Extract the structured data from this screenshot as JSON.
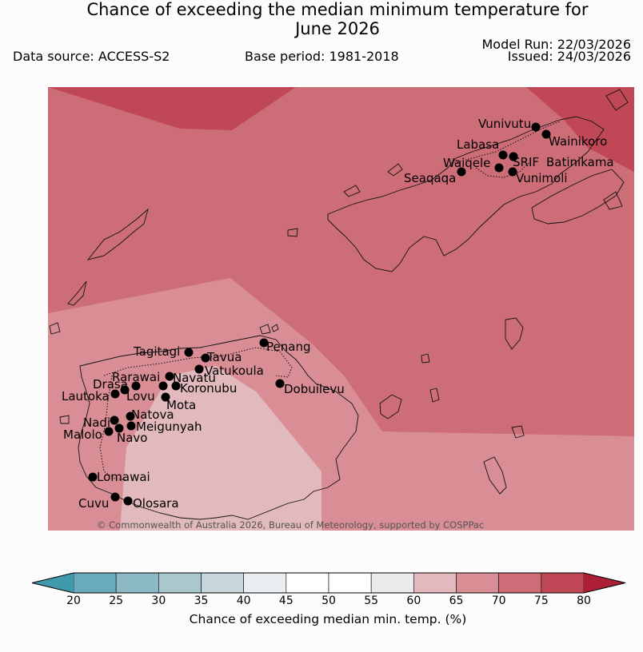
{
  "header": {
    "title_line1": "Chance of exceeding the median minimum temperature for",
    "title_line2": "June 2026",
    "data_source": "Data source: ACCESS-S2",
    "base_period": "Base period: 1981-2018",
    "model_run": "Model Run: 22/03/2026",
    "issued": "Issued: 24/03/2026"
  },
  "map": {
    "credit": "© Commonwealth of Australia 2026, Bureau of Meteorology, supported by COSPPac",
    "colors": {
      "band_60_65": "#e2b9bc",
      "band_65_70": "#d98e95",
      "band_70_75": "#cc6d77",
      "band_75_80": "#c04856",
      "coast": "#111111",
      "station": "#000000"
    },
    "stations": [
      {
        "name": "Vunivutu"
      },
      {
        "name": "Wainikoro"
      },
      {
        "name": "Labasa"
      },
      {
        "name": "Waiqele"
      },
      {
        "name": "SRIF"
      },
      {
        "name": "Batinikama"
      },
      {
        "name": "Seaqaqa"
      },
      {
        "name": "Vunimoli"
      },
      {
        "name": "Tagitagi"
      },
      {
        "name": "Tavua"
      },
      {
        "name": "Penang"
      },
      {
        "name": "Vatukoula"
      },
      {
        "name": "Rarawai"
      },
      {
        "name": "Navatu"
      },
      {
        "name": "Drasa"
      },
      {
        "name": "Koronubu"
      },
      {
        "name": "Lautoka"
      },
      {
        "name": "Lovu"
      },
      {
        "name": "Dobuilevu"
      },
      {
        "name": "Mota"
      },
      {
        "name": "Natova"
      },
      {
        "name": "Nadi"
      },
      {
        "name": "Meigunyah"
      },
      {
        "name": "Malolo"
      },
      {
        "name": "Navo"
      },
      {
        "name": "Lomawai"
      },
      {
        "name": "Cuvu"
      },
      {
        "name": "Olosara"
      }
    ]
  },
  "colorbar": {
    "label": "Chance of exceeding median min. temp. (%)",
    "ticks": [
      "20",
      "25",
      "30",
      "35",
      "40",
      "45",
      "50",
      "55",
      "60",
      "65",
      "70",
      "75",
      "80"
    ],
    "colors": [
      "#6aabbb",
      "#8bbac5",
      "#a8c8ce",
      "#c6d6da",
      "#e9eff1",
      "#ffffff",
      "#ffffff",
      "#eaeaea",
      "#e2b9bc",
      "#d98e95",
      "#cc6d77",
      "#c04856"
    ],
    "low_extend_color": "#3f9aab",
    "high_extend_color": "#ac1f37"
  }
}
